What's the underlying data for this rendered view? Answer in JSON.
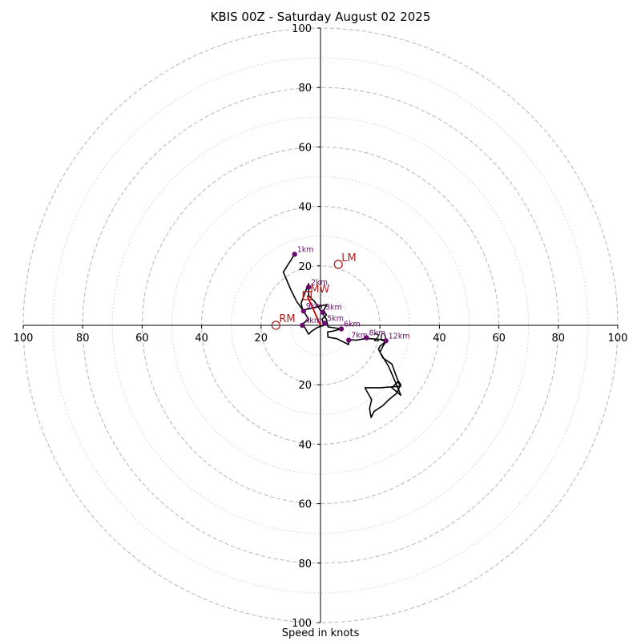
{
  "chart_data": {
    "type": "hodograph",
    "title": "KBIS 00Z - Saturday August 02 2025",
    "xlabel": "Speed in knots",
    "ylabel": "",
    "grid": true,
    "xlim": [
      -100,
      100
    ],
    "ylim": [
      -100,
      100
    ],
    "rings_dashed": [
      20,
      40,
      60,
      80,
      100
    ],
    "rings_dotted": [
      10,
      30,
      50,
      70,
      90
    ],
    "x_tick_labels": [
      "100",
      "80",
      "60",
      "40",
      "20",
      "20",
      "40",
      "60",
      "80",
      "100"
    ],
    "x_tick_values": [
      -100,
      -80,
      -60,
      -40,
      -20,
      20,
      40,
      60,
      80,
      100
    ],
    "y_tick_labels": [
      "100",
      "80",
      "60",
      "40",
      "20",
      "20",
      "40",
      "60",
      "80",
      "100"
    ],
    "y_tick_values": [
      100,
      80,
      60,
      40,
      20,
      -20,
      -40,
      -60,
      -80,
      -100
    ],
    "colors": {
      "trace": "#000000",
      "height_marker": "#6a0a6e",
      "motion": "#b22222",
      "shear": "#cc0000",
      "grid": "#bbbbbb"
    },
    "trace": [
      [
        -8.7,
        23.9
      ],
      [
        -12.5,
        17.9
      ],
      [
        -10,
        12
      ],
      [
        -8,
        8
      ],
      [
        -5.7,
        4.8
      ],
      [
        -4,
        2
      ],
      [
        -6,
        0.5
      ],
      [
        -5.7,
        0
      ],
      [
        -4,
        -3
      ],
      [
        -3,
        -2
      ],
      [
        -1,
        -0.7
      ],
      [
        1.2,
        0
      ],
      [
        0.5,
        2
      ],
      [
        2,
        3.5
      ],
      [
        1,
        5
      ],
      [
        2.2,
        7
      ],
      [
        -2,
        6
      ],
      [
        -6,
        5
      ],
      [
        -6.5,
        7.5
      ],
      [
        -5,
        11.5
      ],
      [
        -4,
        14
      ],
      [
        -4,
        10
      ],
      [
        -2,
        8
      ],
      [
        0,
        5
      ],
      [
        2,
        2
      ],
      [
        2.5,
        -0.5
      ],
      [
        7,
        -1.2
      ],
      [
        4,
        -2
      ],
      [
        2.4,
        -2.2
      ],
      [
        2.5,
        -4
      ],
      [
        5.5,
        -4.5
      ],
      [
        9.5,
        -6.5
      ],
      [
        9.2,
        -4.8
      ],
      [
        12,
        -5
      ],
      [
        15,
        -4.5
      ],
      [
        17,
        -4.5
      ],
      [
        18,
        -4.6
      ],
      [
        22.5,
        -5
      ],
      [
        20,
        -7
      ],
      [
        19.5,
        -8
      ],
      [
        21,
        -11
      ],
      [
        24,
        -13
      ],
      [
        26,
        -18.5
      ],
      [
        27,
        -20
      ],
      [
        25.5,
        -23
      ],
      [
        23,
        -25
      ],
      [
        21,
        -27
      ],
      [
        18,
        -29
      ],
      [
        17,
        -31
      ],
      [
        16.5,
        -28
      ],
      [
        17.2,
        -25
      ],
      [
        15.5,
        -22
      ],
      [
        15,
        -21
      ],
      [
        20,
        -21
      ],
      [
        27,
        -20.5
      ],
      [
        26,
        -19
      ],
      [
        24,
        -21
      ],
      [
        27,
        -23.5
      ],
      [
        26,
        -21
      ],
      [
        23,
        -14
      ],
      [
        20,
        -9
      ],
      [
        21,
        -7
      ],
      [
        22,
        -5.5
      ]
    ],
    "height_points": [
      {
        "label": "1km",
        "u": -8.7,
        "v": 23.9
      },
      {
        "label": "2km",
        "u": -4,
        "v": 12.8
      },
      {
        "label": "3km",
        "u": 0.8,
        "v": 4.4
      },
      {
        "label": "4km",
        "u": -6.1,
        "v": 0
      },
      {
        "label": "5km",
        "u": 1.4,
        "v": 0.7
      },
      {
        "label": "6km",
        "u": 7,
        "v": -1.2
      },
      {
        "label": "7km",
        "u": 9.5,
        "v": -5
      },
      {
        "label": "8km",
        "u": 15.5,
        "v": -4.2
      },
      {
        "label": "12km",
        "u": 22,
        "v": -5.2
      },
      {
        "label": "9km",
        "u": -5.7,
        "v": 4.8
      }
    ],
    "storm_motion": [
      {
        "label": "RM",
        "u": -15,
        "v": 0
      },
      {
        "label": "LM",
        "u": 6,
        "v": 20.5
      },
      {
        "label": "MW",
        "u": -4.5,
        "v": 10
      }
    ],
    "shear_vector": {
      "from": [
        -4.5,
        10
      ],
      "to": [
        0,
        0
      ]
    }
  }
}
